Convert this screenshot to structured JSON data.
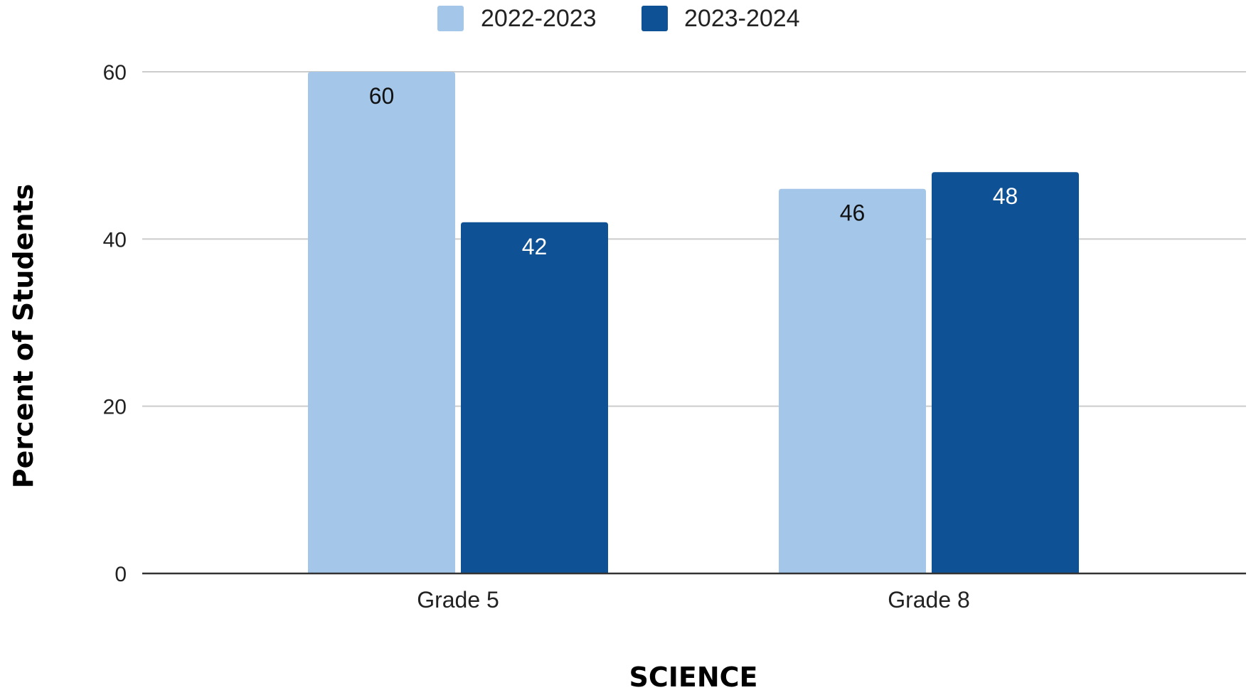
{
  "chart_data": {
    "type": "bar",
    "categories": [
      "Grade 5",
      "Grade 8"
    ],
    "series": [
      {
        "name": "2022-2023",
        "values": [
          60,
          46
        ],
        "color": "#a3c6e9",
        "label_color": "#111111"
      },
      {
        "name": "2023-2024",
        "values": [
          42,
          48
        ],
        "color": "#0e5194",
        "label_color": "#ffffff"
      }
    ],
    "xlabel": "SCIENCE",
    "ylabel": "Percent of Students",
    "ylim": [
      0,
      60
    ],
    "yticks": [
      0,
      20,
      40,
      60
    ],
    "yticks_text": [
      "0",
      "20",
      "40",
      "60"
    ],
    "grid": true,
    "gridline_color": "#cccccc",
    "axis_color": "#333333",
    "legend_position": "top-center",
    "data_labels": true
  }
}
